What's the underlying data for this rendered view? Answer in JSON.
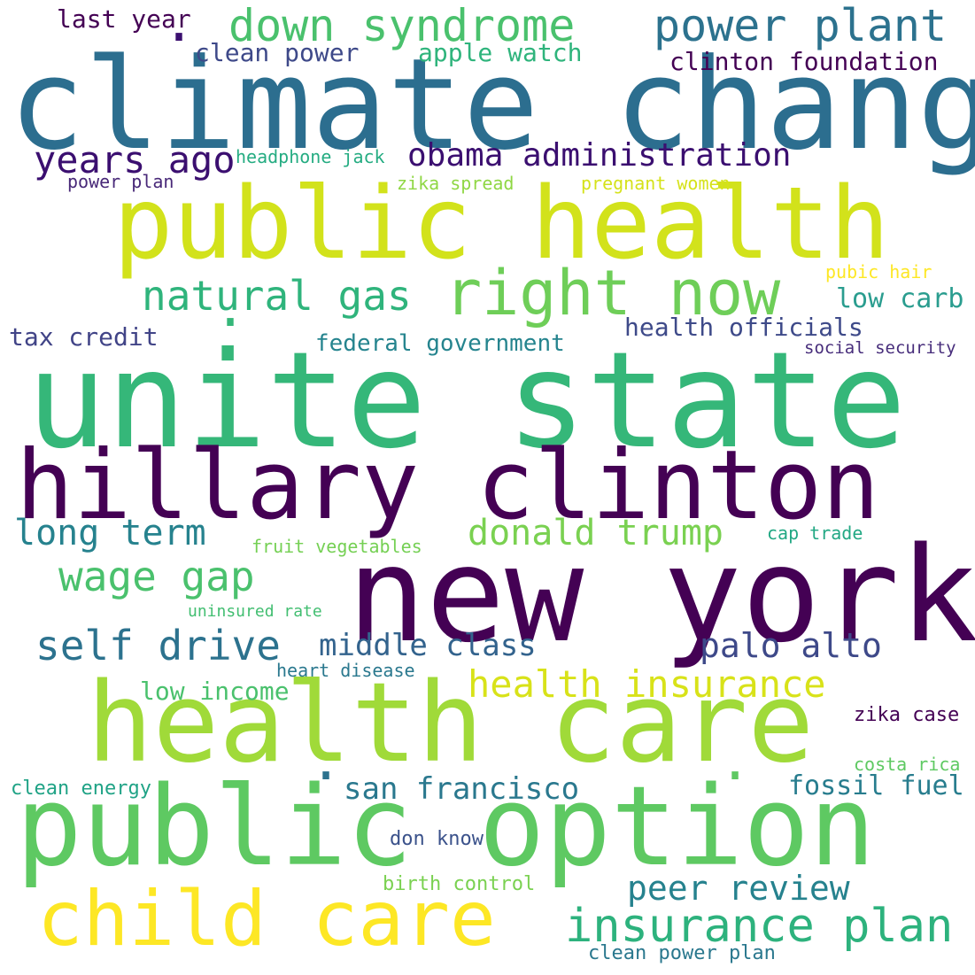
{
  "palette": {
    "purple": "#440154",
    "indigo": "#482878",
    "blue_violet": "#3e4989",
    "steel_blue": "#31688e",
    "teal": "#26828e",
    "green_teal": "#1f9e89",
    "green": "#35b779",
    "light_green": "#6ece58",
    "yellow_green": "#b5de2b",
    "yellow": "#fde725"
  },
  "words": [
    {
      "text": "climate change",
      "color": "#2c6e8f"
    },
    {
      "text": "unite state",
      "color": "#35b779"
    },
    {
      "text": "new york",
      "color": "#440154"
    },
    {
      "text": "hillary clinton",
      "color": "#440154"
    },
    {
      "text": "public health",
      "color": "#d2e21b"
    },
    {
      "text": "health care",
      "color": "#a0da39"
    },
    {
      "text": "public option",
      "color": "#5ec962"
    },
    {
      "text": "right now",
      "color": "#6ece58"
    },
    {
      "text": "child care",
      "color": "#fde725"
    },
    {
      "text": "down syndrome",
      "color": "#4ac16d"
    },
    {
      "text": "power plant",
      "color": "#2c728e"
    },
    {
      "text": "insurance plan",
      "color": "#2db27d"
    },
    {
      "text": "natural gas",
      "color": "#2fb47c"
    },
    {
      "text": "years ago",
      "color": "#3b0f70"
    },
    {
      "text": "obama administration",
      "color": "#3b0f70"
    },
    {
      "text": "self drive",
      "color": "#2c728e"
    },
    {
      "text": "health insurance",
      "color": "#d8e219"
    },
    {
      "text": "donald trump",
      "color": "#7ad151"
    },
    {
      "text": "wage gap",
      "color": "#4ac16d"
    },
    {
      "text": "long term",
      "color": "#26828e"
    },
    {
      "text": "palo alto",
      "color": "#3e4989"
    },
    {
      "text": "peer review",
      "color": "#26828e"
    },
    {
      "text": "san francisco",
      "color": "#2a788e"
    },
    {
      "text": "middle class",
      "color": "#33638d"
    },
    {
      "text": "clinton foundation",
      "color": "#440154"
    },
    {
      "text": "health officials",
      "color": "#3e4a89"
    },
    {
      "text": "federal government",
      "color": "#25848e"
    },
    {
      "text": "fossil fuel",
      "color": "#287d8e"
    },
    {
      "text": "low carb",
      "color": "#2a9d8f"
    },
    {
      "text": "tax credit",
      "color": "#414487"
    },
    {
      "text": "low income",
      "color": "#4ac16d"
    },
    {
      "text": "last year",
      "color": "#440154"
    },
    {
      "text": "clean power",
      "color": "#3e4989"
    },
    {
      "text": "apple watch",
      "color": "#2fb47c"
    },
    {
      "text": "headphone jack",
      "color": "#25ac82"
    },
    {
      "text": "power plan",
      "color": "#482878"
    },
    {
      "text": "zika spread",
      "color": "#8fd744"
    },
    {
      "text": "pregnant women",
      "color": "#d5e21a"
    },
    {
      "text": "pubic hair",
      "color": "#fde725"
    },
    {
      "text": "social security",
      "color": "#472d7b"
    },
    {
      "text": "fruit vegetables",
      "color": "#75d054"
    },
    {
      "text": "cap trade",
      "color": "#22a884"
    },
    {
      "text": "uninsured rate",
      "color": "#42be71"
    },
    {
      "text": "heart disease",
      "color": "#2a788e"
    },
    {
      "text": "zika case",
      "color": "#440154"
    },
    {
      "text": "costa rica",
      "color": "#5ec962"
    },
    {
      "text": "clean energy",
      "color": "#20a386"
    },
    {
      "text": "don know",
      "color": "#3b528b"
    },
    {
      "text": "birth control",
      "color": "#7ad151"
    },
    {
      "text": "clean power plan",
      "color": "#2a788e"
    },
    {
      "text": ".",
      "color": "#3b0f70"
    },
    {
      "text": ".",
      "color": "#35b779"
    },
    {
      "text": ".",
      "color": "#2c728e"
    },
    {
      "text": ".",
      "color": "#5ec962"
    }
  ]
}
